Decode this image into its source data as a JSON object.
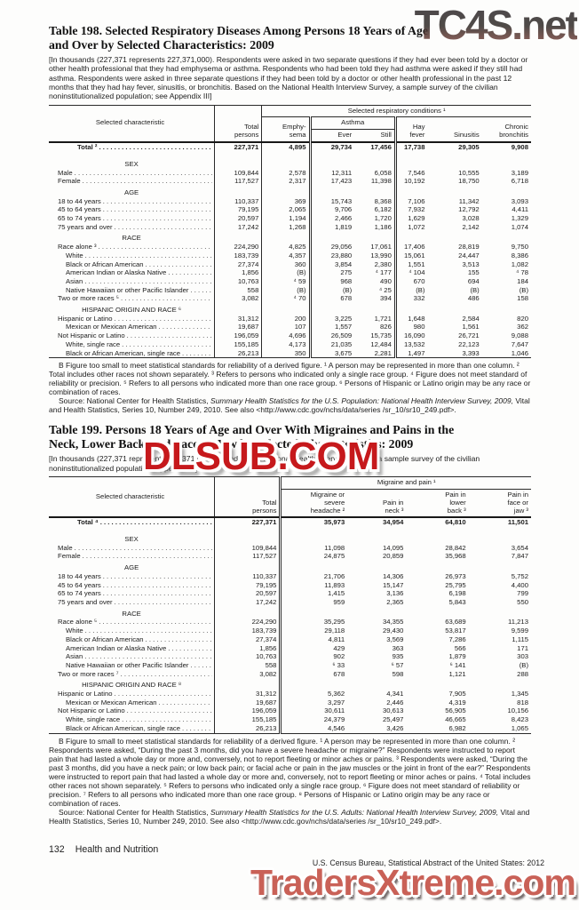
{
  "watermarks": {
    "top": "TC4S.net",
    "middle": "DLSUB.COM",
    "bottom": "TradersXtreme.com"
  },
  "table198": {
    "title_line1": "Table 198. Selected Respiratory Diseases Among Persons 18 Years of Age",
    "title_line2": "and Over by Selected Characteristics: 2009",
    "intro": "[In thousands (227,371 represents 227,371,000). Respondents were asked in two separate questions if they had ever been told by a doctor or other health professional that they had emphysema or asthma. Respondents who had been told they had asthma were asked if they still had asthma. Respondents were asked in three separate questions if they had been told by a doctor or other health professional in the past 12 months that they had hay fever, sinusitis, or bronchitis. Based on the National Health Interview Survey, a sample survey of the civilian noninstitutionalized population; see Appendix III]",
    "header": {
      "characteristic": "Selected characteristic",
      "total": "Total\npersons",
      "group": "Selected respiratory conditions ¹",
      "emphysema": "Emphy-\nsema",
      "asthma": "Asthma",
      "ever": "Ever",
      "still": "Still",
      "hay": "Hay\nfever",
      "sinusitis": "Sinusitis",
      "chronic": "Chronic\nbronchitis"
    },
    "rows": [
      {
        "t": "total",
        "l": "Total ²",
        "v": [
          "227,371",
          "4,895",
          "29,734",
          "17,456",
          "17,738",
          "29,305",
          "9,908"
        ]
      },
      {
        "t": "sec",
        "l": "SEX"
      },
      {
        "t": "r",
        "i": 0,
        "l": "Male",
        "v": [
          "109,844",
          "2,578",
          "12,311",
          "6,058",
          "7,546",
          "10,555",
          "3,189"
        ]
      },
      {
        "t": "r",
        "i": 0,
        "l": "Female",
        "v": [
          "117,527",
          "2,317",
          "17,423",
          "11,398",
          "10,192",
          "18,750",
          "6,718"
        ]
      },
      {
        "t": "sec",
        "l": "AGE"
      },
      {
        "t": "r",
        "i": 0,
        "l": "18 to 44 years",
        "v": [
          "110,337",
          "369",
          "15,743",
          "8,368",
          "7,106",
          "11,342",
          "3,093"
        ]
      },
      {
        "t": "r",
        "i": 0,
        "l": "45 to 64 years",
        "v": [
          "79,195",
          "2,065",
          "9,706",
          "6,182",
          "7,932",
          "12,792",
          "4,411"
        ]
      },
      {
        "t": "r",
        "i": 0,
        "l": "65 to 74 years",
        "v": [
          "20,597",
          "1,194",
          "2,466",
          "1,720",
          "1,629",
          "3,028",
          "1,329"
        ]
      },
      {
        "t": "r",
        "i": 0,
        "l": "75 years and over",
        "v": [
          "17,242",
          "1,268",
          "1,819",
          "1,186",
          "1,072",
          "2,142",
          "1,074"
        ]
      },
      {
        "t": "sec",
        "l": "RACE"
      },
      {
        "t": "r",
        "i": 0,
        "l": "Race alone ³",
        "v": [
          "224,290",
          "4,825",
          "29,056",
          "17,061",
          "17,406",
          "28,819",
          "9,750"
        ]
      },
      {
        "t": "r",
        "i": 1,
        "l": "White",
        "v": [
          "183,739",
          "4,357",
          "23,880",
          "13,990",
          "15,061",
          "24,447",
          "8,386"
        ]
      },
      {
        "t": "r",
        "i": 1,
        "l": "Black or African American",
        "v": [
          "27,374",
          "360",
          "3,854",
          "2,380",
          "1,551",
          "3,513",
          "1,082"
        ]
      },
      {
        "t": "r",
        "i": 1,
        "l": "American Indian or Alaska Native",
        "v": [
          "1,856",
          "(B)",
          "275",
          "⁴ 177",
          "⁴ 104",
          "155",
          "⁴ 78"
        ]
      },
      {
        "t": "r",
        "i": 1,
        "l": "Asian",
        "v": [
          "10,763",
          "⁴ 59",
          "968",
          "490",
          "670",
          "694",
          "184"
        ]
      },
      {
        "t": "r",
        "i": 1,
        "l": "Native Hawaiian or other Pacific Islander",
        "v": [
          "558",
          "(B)",
          "(B)",
          "⁴ 25",
          "(B)",
          "(B)",
          "(B)"
        ]
      },
      {
        "t": "r",
        "i": 0,
        "l": "Two or more races ⁵",
        "v": [
          "3,082",
          "⁴ 70",
          "678",
          "394",
          "332",
          "486",
          "158"
        ]
      },
      {
        "t": "sec",
        "l": "HISPANIC ORIGIN AND RACE ⁶"
      },
      {
        "t": "r",
        "i": 0,
        "l": "Hispanic or Latino",
        "v": [
          "31,312",
          "200",
          "3,225",
          "1,721",
          "1,648",
          "2,584",
          "820"
        ]
      },
      {
        "t": "r",
        "i": 1,
        "l": "Mexican or Mexican American",
        "v": [
          "19,687",
          "107",
          "1,557",
          "826",
          "980",
          "1,561",
          "362"
        ]
      },
      {
        "t": "r",
        "i": 0,
        "l": "Not Hispanic or Latino",
        "v": [
          "196,059",
          "4,696",
          "26,509",
          "15,735",
          "16,090",
          "26,721",
          "9,088"
        ]
      },
      {
        "t": "r",
        "i": 1,
        "l": "White, single race",
        "v": [
          "155,185",
          "4,173",
          "21,035",
          "12,484",
          "13,532",
          "22,123",
          "7,647"
        ]
      },
      {
        "t": "r",
        "i": 1,
        "l": "Black or African American, single race",
        "v": [
          "26,213",
          "350",
          "3,675",
          "2,281",
          "1,497",
          "3,393",
          "1,046"
        ]
      }
    ],
    "footnotes": "B Figure too small to meet statistical standards for reliability of a derived figure. ¹ A person may be represented in more than one column. ² Total includes other races not shown separately. ³ Refers to persons who indicated only a single race group. ⁴ Figure does not meet standard of reliability or precision. ⁵ Refers to all persons who indicated more than one race group. ⁶ Persons of Hispanic or Latino origin may be any race or combination of races.",
    "source_prefix": "Source: National Center for Health Statistics, ",
    "source_italic": "Summary Health Statistics for the U.S. Population: National Health Interview Survey, 2009,",
    "source_suffix": " Vital and Health Statistics, Series 10, Number 249, 2010. See also <http://www.cdc.gov/nchs/data/series /sr_10/sr10_249.pdf>."
  },
  "table199": {
    "title_line1": "Table 199. Persons 18 Years of Age and Over With Migraines and Pains in the",
    "title_line2": "Neck, Lower Back, and Face or Jaw by Selected Characteristics: 2009",
    "intro": "[In thousands (227,371 represents 227,371,000). Based on the National Health Interview Survey, a sample survey of the civilian noninstitutionalized population, Appendix III]",
    "header": {
      "characteristic": "Selected characteristic",
      "total": "Total\npersons",
      "group": "Migraine and pain ¹",
      "migraine": "Migraine or\nsevere\nheadache ²",
      "neck": "Pain in\nneck ³",
      "back": "Pain in\nlower\nback ³",
      "jaw": "Pain in\nface or\njaw ³"
    },
    "rows": [
      {
        "t": "total",
        "l": "Total ⁴",
        "v": [
          "227,371",
          "35,973",
          "34,954",
          "64,810",
          "11,501"
        ]
      },
      {
        "t": "sec",
        "l": "SEX"
      },
      {
        "t": "r",
        "i": 0,
        "l": "Male",
        "v": [
          "109,844",
          "11,098",
          "14,095",
          "28,842",
          "3,654"
        ]
      },
      {
        "t": "r",
        "i": 0,
        "l": "Female",
        "v": [
          "117,527",
          "24,875",
          "20,859",
          "35,968",
          "7,847"
        ]
      },
      {
        "t": "sec",
        "l": "AGE"
      },
      {
        "t": "r",
        "i": 0,
        "l": "18 to 44 years",
        "v": [
          "110,337",
          "21,706",
          "14,306",
          "26,973",
          "5,752"
        ]
      },
      {
        "t": "r",
        "i": 0,
        "l": "45 to 64 years",
        "v": [
          "79,195",
          "11,893",
          "15,147",
          "25,795",
          "4,400"
        ]
      },
      {
        "t": "r",
        "i": 0,
        "l": "65 to 74 years",
        "v": [
          "20,597",
          "1,415",
          "3,136",
          "6,198",
          "799"
        ]
      },
      {
        "t": "r",
        "i": 0,
        "l": "75 years and over",
        "v": [
          "17,242",
          "959",
          "2,365",
          "5,843",
          "550"
        ]
      },
      {
        "t": "sec",
        "l": "RACE"
      },
      {
        "t": "r",
        "i": 0,
        "l": "Race alone ⁵",
        "v": [
          "224,290",
          "35,295",
          "34,355",
          "63,689",
          "11,213"
        ]
      },
      {
        "t": "r",
        "i": 1,
        "l": "White",
        "v": [
          "183,739",
          "29,118",
          "29,430",
          "53,817",
          "9,599"
        ]
      },
      {
        "t": "r",
        "i": 1,
        "l": "Black or African American",
        "v": [
          "27,374",
          "4,811",
          "3,569",
          "7,286",
          "1,115"
        ]
      },
      {
        "t": "r",
        "i": 1,
        "l": "American Indian or Alaska Native",
        "v": [
          "1,856",
          "429",
          "363",
          "566",
          "171"
        ]
      },
      {
        "t": "r",
        "i": 1,
        "l": "Asian",
        "v": [
          "10,763",
          "902",
          "935",
          "1,879",
          "303"
        ]
      },
      {
        "t": "r",
        "i": 1,
        "l": "Native Hawaiian or other Pacific Islander",
        "v": [
          "558",
          "⁶ 33",
          "⁶ 57",
          "⁶ 141",
          "(B)"
        ]
      },
      {
        "t": "r",
        "i": 0,
        "l": "Two or more races ⁷",
        "v": [
          "3,082",
          "678",
          "598",
          "1,121",
          "288"
        ]
      },
      {
        "t": "sec",
        "l": "HISPANIC ORIGIN AND RACE ⁸"
      },
      {
        "t": "r",
        "i": 0,
        "l": "Hispanic or Latino",
        "v": [
          "31,312",
          "5,362",
          "4,341",
          "7,905",
          "1,345"
        ]
      },
      {
        "t": "r",
        "i": 1,
        "l": "Mexican or Mexican American",
        "v": [
          "19,687",
          "3,297",
          "2,446",
          "4,319",
          "818"
        ]
      },
      {
        "t": "r",
        "i": 0,
        "l": "Not Hispanic or Latino",
        "v": [
          "196,059",
          "30,611",
          "30,613",
          "56,905",
          "10,156"
        ]
      },
      {
        "t": "r",
        "i": 1,
        "l": "White, single race",
        "v": [
          "155,185",
          "24,379",
          "25,497",
          "46,665",
          "8,423"
        ]
      },
      {
        "t": "r",
        "i": 1,
        "l": "Black or African American, single race",
        "v": [
          "26,213",
          "4,546",
          "3,426",
          "6,982",
          "1,065"
        ]
      }
    ],
    "footnotes": "B Figure to small to meet statistical standards for reliability of a derived figure. ¹ A person may be represented in more than one column. ² Respondents were asked, “During the past 3 months, did you have a severe headache or migraine?” Respondents were instructed to report pain that had lasted a whole day or more and, conversely, not to report fleeting or minor aches or pains. ³ Respondents were asked, “During the past 3 months, did you have a neck pain; or low back pain; or facial ache or pain in the jaw muscles or the joint in front of the ear?” Respondents were instructed to report pain that had lasted a whole day or more and, conversely, not to report fleeting or minor aches or pains. ⁴ Total includes other races not shown separately. ⁵ Refers to persons who indicated only a single race group. ⁶ Figure does not meet standard of reliability or precision. ⁷ Refers to all persons who indicated more than one race group. ⁸ Persons of Hispanic or Latino origin may be any race or combination of races.",
    "source_prefix": "Source: National Center for Health Statistics, ",
    "source_italic": "Summary Health Statistics for the U.S. Adults: National Health Interview Survey, 2009,",
    "source_suffix": " Vital and Health Statistics, Series 10, Number 249, 2010. See also <http://www.cdc.gov/nchs/data/series /sr_10/sr10_249.pdf>."
  },
  "footer": {
    "page_number": "132",
    "section": "Health and Nutrition",
    "source_line": "U.S. Census Bureau, Statistical Abstract of the United States: 2012"
  }
}
